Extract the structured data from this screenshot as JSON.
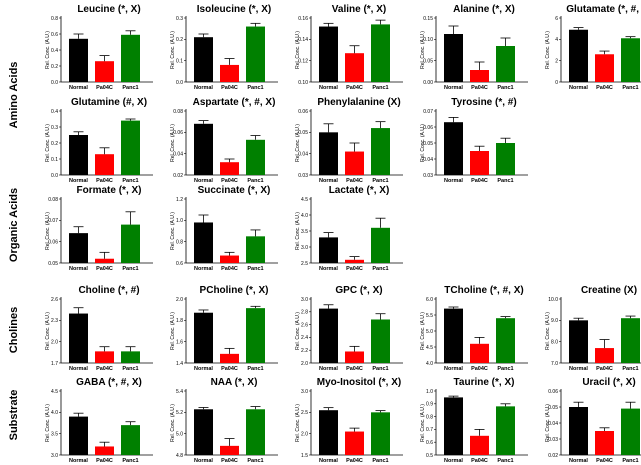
{
  "figure": {
    "row_labels": [
      "Amino Acids",
      "Organic Acids",
      "Cholines",
      "Substrate"
    ],
    "bar_colors": {
      "Normal": "#000000",
      "Pa04C": "#ff0000",
      "Panc1": "#008000"
    }
  },
  "chart_data": [
    {
      "type": "bar",
      "row": 0,
      "col": 0,
      "title": "Leucine (*, X)",
      "ylabel": "Rel. Conc. (A.U.)",
      "categories": [
        "Normal",
        "Pa04C",
        "Panc1"
      ],
      "values": [
        0.54,
        0.26,
        0.59
      ],
      "errors": [
        0.06,
        0.07,
        0.05
      ],
      "ylim": [
        0,
        0.8
      ],
      "yticks": [
        "0.0",
        "0.2",
        "0.4",
        "0.6",
        "0.8"
      ]
    },
    {
      "type": "bar",
      "row": 0,
      "col": 1,
      "title": "Isoleucine (*, X)",
      "ylabel": "Rel. Conc. (A.U.)",
      "categories": [
        "Normal",
        "Pa04C",
        "Panc1"
      ],
      "values": [
        0.21,
        0.08,
        0.26
      ],
      "errors": [
        0.015,
        0.03,
        0.015
      ],
      "ylim": [
        0,
        0.3
      ],
      "yticks": [
        "0.0",
        "0.1",
        "0.2",
        "0.3"
      ]
    },
    {
      "type": "bar",
      "row": 0,
      "col": 2,
      "title": "Valine (*, X)",
      "ylabel": "Rel. Conc. (A.U.)",
      "categories": [
        "Normal",
        "Pa04C",
        "Panc1"
      ],
      "values": [
        0.152,
        0.127,
        0.154
      ],
      "errors": [
        0.003,
        0.007,
        0.004
      ],
      "ylim": [
        0.1,
        0.16
      ],
      "yticks": [
        "0.10",
        "0.12",
        "0.14",
        "0.16"
      ]
    },
    {
      "type": "bar",
      "row": 0,
      "col": 3,
      "title": "Alanine (*, X)",
      "ylabel": "Rel. Conc. (A.U.)",
      "categories": [
        "Normal",
        "Pa04C",
        "Panc1"
      ],
      "values": [
        0.12,
        0.03,
        0.09
      ],
      "errors": [
        0.02,
        0.02,
        0.02
      ],
      "ylim": [
        0,
        0.16
      ],
      "yticks": [
        "0.00",
        "0.05",
        "0.10",
        "0.15"
      ]
    },
    {
      "type": "bar",
      "row": 0,
      "col": 4,
      "title": "Glutamate (*, #, X)",
      "ylabel": "Rel. Conc. (A.U.)",
      "categories": [
        "Normal",
        "Pa04C",
        "Panc1"
      ],
      "values": [
        4.9,
        2.6,
        4.1
      ],
      "errors": [
        0.2,
        0.3,
        0.15
      ],
      "ylim": [
        0,
        6
      ],
      "yticks": [
        "0",
        "2",
        "4",
        "6"
      ]
    },
    {
      "type": "bar",
      "row": 1,
      "col": 0,
      "title": "Glutamine (#, X)",
      "ylabel": "Rel. Conc. (A.U.)",
      "categories": [
        "Normal",
        "Pa04C",
        "Panc1"
      ],
      "values": [
        0.25,
        0.13,
        0.34
      ],
      "errors": [
        0.02,
        0.04,
        0.01
      ],
      "ylim": [
        0,
        0.4
      ],
      "yticks": [
        "0.0",
        "0.1",
        "0.2",
        "0.3",
        "0.4"
      ]
    },
    {
      "type": "bar",
      "row": 1,
      "col": 1,
      "title": "Aspartate (*, #, X)",
      "ylabel": "Rel. Conc. (A.U.)",
      "categories": [
        "Normal",
        "Pa04C",
        "Panc1"
      ],
      "values": [
        0.068,
        0.032,
        0.053
      ],
      "errors": [
        0.003,
        0.003,
        0.004
      ],
      "ylim": [
        0.02,
        0.08
      ],
      "yticks": [
        "0.02",
        "0.04",
        "0.06",
        "0.08"
      ]
    },
    {
      "type": "bar",
      "row": 1,
      "col": 2,
      "title": "Phenylalanine (X)",
      "ylabel": "Rel. Conc. (A.U.)",
      "categories": [
        "Normal",
        "Pa04C",
        "Panc1"
      ],
      "values": [
        0.05,
        0.041,
        0.052
      ],
      "errors": [
        0.004,
        0.004,
        0.003
      ],
      "ylim": [
        0.03,
        0.06
      ],
      "yticks": [
        "0.03",
        "0.04",
        "0.05",
        "0.06"
      ]
    },
    {
      "type": "bar",
      "row": 1,
      "col": 3,
      "title": "Tyrosine (*, #)",
      "ylabel": "Rel. Conc. (A.U.)",
      "categories": [
        "Normal",
        "Pa04C",
        "Panc1"
      ],
      "values": [
        0.063,
        0.045,
        0.05
      ],
      "errors": [
        0.003,
        0.003,
        0.003
      ],
      "ylim": [
        0.03,
        0.07
      ],
      "yticks": [
        "0.03",
        "0.04",
        "0.05",
        "0.06",
        "0.07"
      ]
    },
    {
      "type": "bar",
      "row": 2,
      "col": 0,
      "title": "Formate (*, X)",
      "ylabel": "Rel. Conc. (A.U.)",
      "categories": [
        "Normal",
        "Pa04C",
        "Panc1"
      ],
      "values": [
        0.064,
        0.052,
        0.068
      ],
      "errors": [
        0.003,
        0.003,
        0.006
      ],
      "ylim": [
        0.05,
        0.08
      ],
      "yticks": [
        "0.05",
        "0.06",
        "0.07",
        "0.08"
      ]
    },
    {
      "type": "bar",
      "row": 2,
      "col": 1,
      "title": "Succinate (*, X)",
      "ylabel": "Rel. Conc. (A.U.)",
      "categories": [
        "Normal",
        "Pa04C",
        "Panc1"
      ],
      "values": [
        0.98,
        0.67,
        0.85
      ],
      "errors": [
        0.07,
        0.03,
        0.06
      ],
      "ylim": [
        0.6,
        1.2
      ],
      "yticks": [
        "0.6",
        "0.8",
        "1.0",
        "1.2"
      ]
    },
    {
      "type": "bar",
      "row": 2,
      "col": 2,
      "title": "Lactate (*, X)",
      "ylabel": "Rel. Conc. (A.U.)",
      "categories": [
        "Normal",
        "Pa04C",
        "Panc1"
      ],
      "values": [
        3.3,
        2.6,
        3.6
      ],
      "errors": [
        0.15,
        0.1,
        0.3
      ],
      "ylim": [
        2.5,
        4.5
      ],
      "yticks": [
        "2.5",
        "3.0",
        "3.5",
        "4.0",
        "4.5"
      ]
    },
    {
      "type": "bar",
      "row": 3,
      "col": 0,
      "title": "Choline (*, #)",
      "ylabel": "Rel. Conc. (A.U.)",
      "categories": [
        "Normal",
        "Pa04C",
        "Panc1"
      ],
      "values": [
        2.55,
        1.9,
        1.9
      ],
      "errors": [
        0.1,
        0.08,
        0.08
      ],
      "ylim": [
        1.7,
        2.8
      ],
      "yticks": [
        "1.7",
        "2.0",
        "2.3",
        "2.6"
      ]
    },
    {
      "type": "bar",
      "row": 3,
      "col": 1,
      "title": "PCholine (*, X)",
      "ylabel": "Rel. Conc. (A.U.)",
      "categories": [
        "Normal",
        "Pa04C",
        "Panc1"
      ],
      "values": [
        1.95,
        1.5,
        2.0
      ],
      "errors": [
        0.03,
        0.06,
        0.02
      ],
      "ylim": [
        1.4,
        2.1
      ],
      "yticks": [
        "1.4",
        "1.6",
        "1.8",
        "2.0"
      ]
    },
    {
      "type": "bar",
      "row": 3,
      "col": 2,
      "title": "GPC (*, X)",
      "ylabel": "Rel. Conc. (A.U.)",
      "categories": [
        "Normal",
        "Pa04C",
        "Panc1"
      ],
      "values": [
        2.85,
        2.18,
        2.68
      ],
      "errors": [
        0.06,
        0.08,
        0.09
      ],
      "ylim": [
        2.0,
        3.0
      ],
      "yticks": [
        "2.0",
        "2.2",
        "2.4",
        "2.6",
        "2.8",
        "3.0"
      ]
    },
    {
      "type": "bar",
      "row": 3,
      "col": 3,
      "title": "TCholine (*, #, X)",
      "ylabel": "Rel. Conc. (A.U.)",
      "categories": [
        "Normal",
        "Pa04C",
        "Panc1"
      ],
      "values": [
        5.7,
        4.6,
        5.4
      ],
      "errors": [
        0.05,
        0.2,
        0.05
      ],
      "ylim": [
        4.0,
        6.0
      ],
      "yticks": [
        "4.0",
        "4.5",
        "5.0",
        "5.5",
        "6.0"
      ]
    },
    {
      "type": "bar",
      "row": 3,
      "col": 4,
      "title": "Creatine (X)",
      "ylabel": "Rel. Conc. (A.U.)",
      "categories": [
        "Normal",
        "Pa04C",
        "Panc1"
      ],
      "values": [
        9.0,
        7.7,
        9.1
      ],
      "errors": [
        0.1,
        0.4,
        0.1
      ],
      "ylim": [
        7.0,
        10.0
      ],
      "yticks": [
        "7.0",
        "8.0",
        "9.0",
        "10.0"
      ]
    },
    {
      "type": "bar",
      "row": 4,
      "col": 0,
      "title": "GABA (*, #, X)",
      "ylabel": "Rel. Conc. (A.U.)",
      "categories": [
        "Normal",
        "Pa04C",
        "Panc1"
      ],
      "values": [
        3.9,
        3.2,
        3.7
      ],
      "errors": [
        0.08,
        0.1,
        0.08
      ],
      "ylim": [
        3.0,
        4.5
      ],
      "yticks": [
        "3.0",
        "3.5",
        "4.0",
        "4.5"
      ]
    },
    {
      "type": "bar",
      "row": 4,
      "col": 1,
      "title": "NAA (*, X)",
      "ylabel": "Rel. Conc. (A.U.)",
      "categories": [
        "Normal",
        "Pa04C",
        "Panc1"
      ],
      "values": [
        5.3,
        4.9,
        5.3
      ],
      "errors": [
        0.02,
        0.08,
        0.03
      ],
      "ylim": [
        4.8,
        5.5
      ],
      "yticks": [
        "4.8",
        "5.0",
        "5.2",
        "5.4"
      ]
    },
    {
      "type": "bar",
      "row": 4,
      "col": 2,
      "title": "Myo-Inositol (*, X)",
      "ylabel": "Rel. Conc. (A.U.)",
      "categories": [
        "Normal",
        "Pa04C",
        "Panc1"
      ],
      "values": [
        2.55,
        2.05,
        2.5
      ],
      "errors": [
        0.06,
        0.08,
        0.04
      ],
      "ylim": [
        1.5,
        3.0
      ],
      "yticks": [
        "1.5",
        "2.0",
        "2.5",
        "3.0"
      ]
    },
    {
      "type": "bar",
      "row": 4,
      "col": 3,
      "title": "Taurine (*, X)",
      "ylabel": "Rel. Conc. (A.U.)",
      "categories": [
        "Normal",
        "Pa04C",
        "Panc1"
      ],
      "values": [
        0.95,
        0.65,
        0.88
      ],
      "errors": [
        0.01,
        0.05,
        0.02
      ],
      "ylim": [
        0.5,
        1.0
      ],
      "yticks": [
        "0.5",
        "0.6",
        "0.7",
        "0.8",
        "0.9",
        "1.0"
      ]
    },
    {
      "type": "bar",
      "row": 4,
      "col": 4,
      "title": "Uracil (*, X)",
      "ylabel": "Rel. Conc. (A.U.)",
      "categories": [
        "Normal",
        "Pa04C",
        "Panc1"
      ],
      "values": [
        0.05,
        0.035,
        0.049
      ],
      "errors": [
        0.003,
        0.002,
        0.004
      ],
      "ylim": [
        0.02,
        0.06
      ],
      "yticks": [
        "0.02",
        "0.03",
        "0.04",
        "0.05",
        "0.06"
      ]
    }
  ]
}
